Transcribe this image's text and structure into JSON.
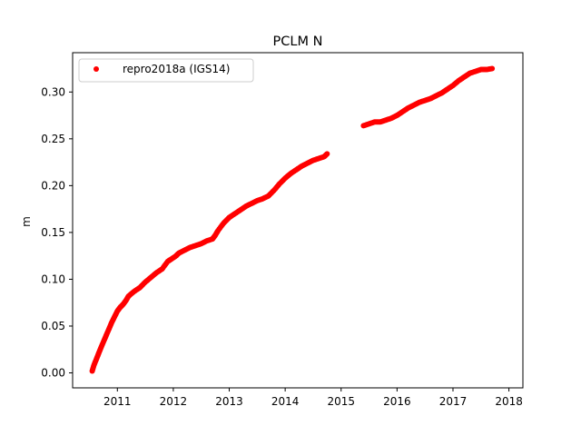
{
  "chart_data": {
    "type": "scatter",
    "title": "PCLM N",
    "xlabel": "",
    "ylabel": "m",
    "xlim": [
      2010.2,
      2018.25
    ],
    "ylim": [
      -0.016,
      0.342
    ],
    "xticks": [
      2011,
      2012,
      2013,
      2014,
      2015,
      2016,
      2017,
      2018
    ],
    "xtick_labels": [
      "2011",
      "2012",
      "2013",
      "2014",
      "2015",
      "2016",
      "2017",
      "2018"
    ],
    "yticks": [
      0.0,
      0.05,
      0.1,
      0.15,
      0.2,
      0.25,
      0.3
    ],
    "ytick_labels": [
      "0.00",
      "0.05",
      "0.10",
      "0.15",
      "0.20",
      "0.25",
      "0.30"
    ],
    "grid": false,
    "legend": {
      "position": "top-left"
    },
    "series": [
      {
        "name": "repro2018a (IGS14)",
        "color": "#ff0000",
        "marker": "circle",
        "x": [
          2010.55,
          2010.58,
          2010.62,
          2010.66,
          2010.7,
          2010.75,
          2010.8,
          2010.85,
          2010.9,
          2010.95,
          2011.0,
          2011.05,
          2011.1,
          2011.15,
          2011.2,
          2011.3,
          2011.4,
          2011.5,
          2011.6,
          2011.7,
          2011.8,
          2011.9,
          2011.95,
          2012.05,
          2012.1,
          2012.2,
          2012.3,
          2012.4,
          2012.5,
          2012.6,
          2012.7,
          2012.75,
          2012.8,
          2012.9,
          2013.0,
          2013.1,
          2013.2,
          2013.3,
          2013.4,
          2013.5,
          2013.6,
          2013.7,
          2013.8,
          2013.9,
          2014.0,
          2014.1,
          2014.2,
          2014.3,
          2014.4,
          2014.5,
          2014.6,
          2014.7,
          2014.75,
          2015.4,
          2015.5,
          2015.6,
          2015.7,
          2015.8,
          2015.9,
          2016.0,
          2016.1,
          2016.2,
          2016.3,
          2016.4,
          2016.5,
          2016.6,
          2016.7,
          2016.8,
          2016.9,
          2017.0,
          2017.1,
          2017.2,
          2017.3,
          2017.4,
          2017.5,
          2017.6,
          2017.7
        ],
        "y": [
          0.002,
          0.008,
          0.014,
          0.02,
          0.026,
          0.033,
          0.04,
          0.047,
          0.054,
          0.06,
          0.066,
          0.07,
          0.073,
          0.077,
          0.082,
          0.087,
          0.091,
          0.097,
          0.102,
          0.107,
          0.111,
          0.119,
          0.121,
          0.125,
          0.128,
          0.131,
          0.134,
          0.136,
          0.138,
          0.141,
          0.143,
          0.147,
          0.152,
          0.16,
          0.166,
          0.17,
          0.174,
          0.178,
          0.181,
          0.184,
          0.186,
          0.189,
          0.195,
          0.202,
          0.208,
          0.213,
          0.217,
          0.221,
          0.224,
          0.227,
          0.229,
          0.231,
          0.234,
          0.264,
          0.266,
          0.268,
          0.268,
          0.27,
          0.272,
          0.275,
          0.279,
          0.283,
          0.286,
          0.289,
          0.291,
          0.293,
          0.296,
          0.299,
          0.303,
          0.307,
          0.312,
          0.316,
          0.32,
          0.322,
          0.324,
          0.324,
          0.325
        ]
      }
    ]
  }
}
